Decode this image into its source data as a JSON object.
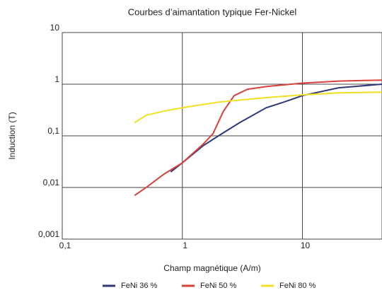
{
  "chart_data": {
    "type": "line",
    "title": "Courbes d’aimantation typique Fer-Nickel",
    "x_label": "Champ magnétique (A/m)",
    "y_label": "Induction (T)",
    "x_scale": "log",
    "y_scale": "log",
    "grid": true,
    "legend": "bottom",
    "xlim": [
      0.1,
      46
    ],
    "ylim": [
      0.001,
      10
    ],
    "xticks": [
      {
        "value": 0.1,
        "label": "0,1"
      },
      1,
      10
    ],
    "yticks": [
      {
        "value": 0.001,
        "label": "0,001"
      },
      {
        "value": 0.01,
        "label": "0,01"
      },
      {
        "value": 0.1,
        "label": "0,1"
      },
      1,
      10
    ],
    "series": [
      {
        "name": "FeNi 36 %",
        "color": "#2e3a78",
        "x": [
          0.8,
          1,
          1.5,
          2,
          3,
          5,
          7,
          10,
          20,
          46
        ],
        "values": [
          0.02,
          0.03,
          0.065,
          0.1,
          0.18,
          0.35,
          0.45,
          0.6,
          0.85,
          1.0
        ]
      },
      {
        "name": "FeNi 50 %",
        "color": "#d9403a",
        "x": [
          0.4,
          0.5,
          0.7,
          1,
          1.5,
          1.8,
          2.2,
          2.7,
          3.5,
          5,
          10,
          20,
          46
        ],
        "values": [
          0.007,
          0.01,
          0.018,
          0.03,
          0.07,
          0.11,
          0.3,
          0.6,
          0.8,
          0.9,
          1.05,
          1.15,
          1.2
        ]
      },
      {
        "name": "FeNi 80 %",
        "color": "#f0e020",
        "x": [
          0.4,
          0.5,
          0.7,
          1,
          2,
          5,
          10,
          20,
          46
        ],
        "values": [
          0.18,
          0.25,
          0.3,
          0.35,
          0.45,
          0.55,
          0.62,
          0.68,
          0.7
        ]
      }
    ]
  }
}
